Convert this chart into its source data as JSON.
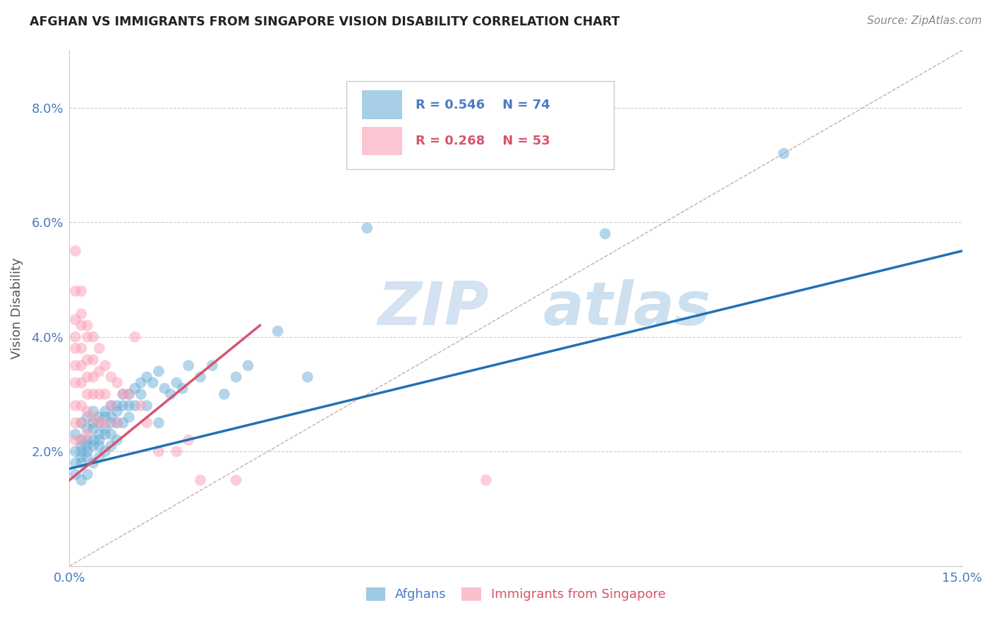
{
  "title": "AFGHAN VS IMMIGRANTS FROM SINGAPORE VISION DISABILITY CORRELATION CHART",
  "source": "Source: ZipAtlas.com",
  "ylabel": "Vision Disability",
  "xlim": [
    0.0,
    0.15
  ],
  "ylim": [
    0.0,
    0.09
  ],
  "blue_color": "#6baed6",
  "pink_color": "#fa9fb5",
  "blue_line_color": "#2171b5",
  "pink_line_color": "#d9536e",
  "diag_line_color": "#ccaaaa",
  "watermark_zip": "ZIP",
  "watermark_atlas": "atlas",
  "blue_R": 0.546,
  "blue_N": 74,
  "pink_R": 0.268,
  "pink_N": 53,
  "blue_line_x0": 0.0,
  "blue_line_y0": 0.017,
  "blue_line_x1": 0.15,
  "blue_line_y1": 0.055,
  "pink_line_x0": 0.0,
  "pink_line_y0": 0.015,
  "pink_line_x1": 0.032,
  "pink_line_y1": 0.042,
  "blue_scatter_x": [
    0.001,
    0.001,
    0.001,
    0.001,
    0.002,
    0.002,
    0.002,
    0.002,
    0.002,
    0.002,
    0.002,
    0.003,
    0.003,
    0.003,
    0.003,
    0.003,
    0.003,
    0.003,
    0.004,
    0.004,
    0.004,
    0.004,
    0.004,
    0.004,
    0.005,
    0.005,
    0.005,
    0.005,
    0.005,
    0.005,
    0.006,
    0.006,
    0.006,
    0.006,
    0.006,
    0.007,
    0.007,
    0.007,
    0.007,
    0.007,
    0.008,
    0.008,
    0.008,
    0.008,
    0.009,
    0.009,
    0.009,
    0.01,
    0.01,
    0.01,
    0.011,
    0.011,
    0.012,
    0.012,
    0.013,
    0.013,
    0.014,
    0.015,
    0.015,
    0.016,
    0.017,
    0.018,
    0.019,
    0.02,
    0.022,
    0.024,
    0.026,
    0.028,
    0.03,
    0.035,
    0.04,
    0.05,
    0.09,
    0.12
  ],
  "blue_scatter_y": [
    0.023,
    0.02,
    0.018,
    0.016,
    0.025,
    0.022,
    0.021,
    0.02,
    0.019,
    0.018,
    0.015,
    0.026,
    0.024,
    0.022,
    0.021,
    0.02,
    0.019,
    0.016,
    0.027,
    0.025,
    0.024,
    0.022,
    0.021,
    0.018,
    0.026,
    0.025,
    0.023,
    0.022,
    0.021,
    0.019,
    0.027,
    0.026,
    0.024,
    0.023,
    0.02,
    0.028,
    0.026,
    0.025,
    0.023,
    0.021,
    0.028,
    0.027,
    0.025,
    0.022,
    0.03,
    0.028,
    0.025,
    0.03,
    0.028,
    0.026,
    0.031,
    0.028,
    0.032,
    0.03,
    0.033,
    0.028,
    0.032,
    0.034,
    0.025,
    0.031,
    0.03,
    0.032,
    0.031,
    0.035,
    0.033,
    0.035,
    0.03,
    0.033,
    0.035,
    0.041,
    0.033,
    0.059,
    0.058,
    0.072
  ],
  "pink_scatter_x": [
    0.001,
    0.001,
    0.001,
    0.001,
    0.001,
    0.001,
    0.001,
    0.001,
    0.001,
    0.001,
    0.002,
    0.002,
    0.002,
    0.002,
    0.002,
    0.002,
    0.002,
    0.002,
    0.002,
    0.003,
    0.003,
    0.003,
    0.003,
    0.003,
    0.003,
    0.003,
    0.004,
    0.004,
    0.004,
    0.004,
    0.004,
    0.005,
    0.005,
    0.005,
    0.005,
    0.006,
    0.006,
    0.006,
    0.007,
    0.007,
    0.008,
    0.008,
    0.009,
    0.01,
    0.011,
    0.012,
    0.013,
    0.015,
    0.018,
    0.02,
    0.022,
    0.028,
    0.07
  ],
  "pink_scatter_y": [
    0.055,
    0.048,
    0.043,
    0.04,
    0.038,
    0.035,
    0.032,
    0.028,
    0.025,
    0.022,
    0.048,
    0.044,
    0.042,
    0.038,
    0.035,
    0.032,
    0.028,
    0.025,
    0.022,
    0.042,
    0.04,
    0.036,
    0.033,
    0.03,
    0.027,
    0.023,
    0.04,
    0.036,
    0.033,
    0.03,
    0.026,
    0.038,
    0.034,
    0.03,
    0.025,
    0.035,
    0.03,
    0.025,
    0.033,
    0.028,
    0.032,
    0.025,
    0.03,
    0.03,
    0.04,
    0.028,
    0.025,
    0.02,
    0.02,
    0.022,
    0.015,
    0.015,
    0.015
  ]
}
